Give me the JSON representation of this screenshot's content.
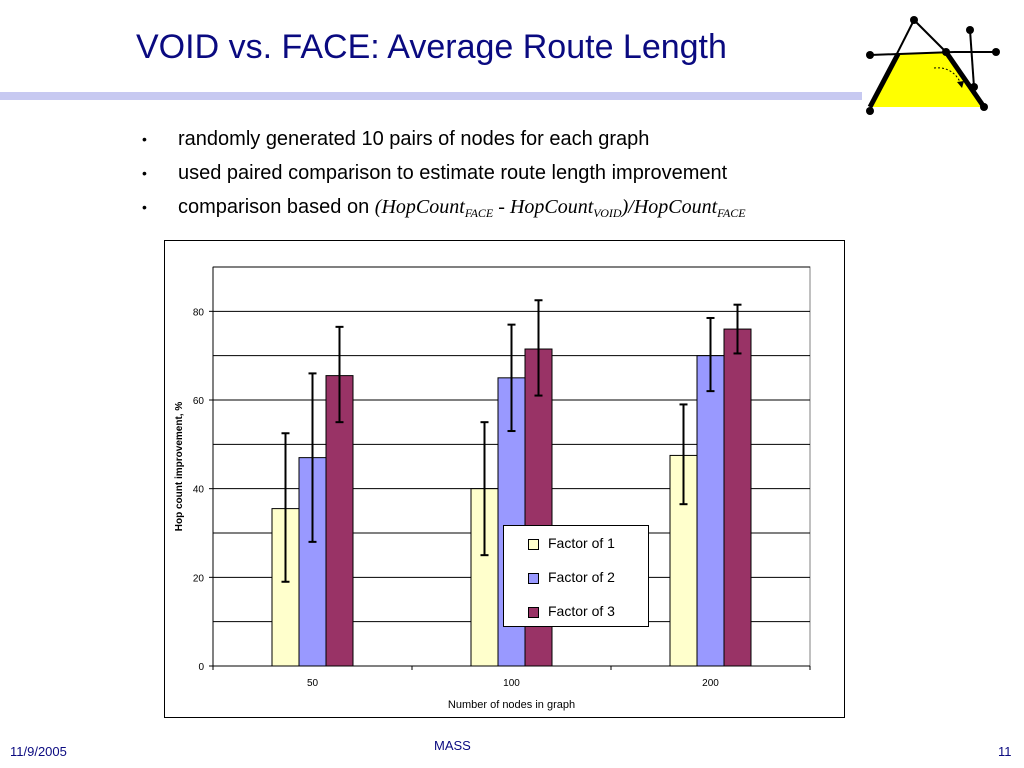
{
  "slide": {
    "title": "VOID vs. FACE: Average Route Length",
    "bullets": [
      "randomly generated 10 pairs of nodes for each graph",
      "used paired comparison to estimate route length improvement"
    ],
    "formula_intro": "comparison based on",
    "formula_parts": {
      "open": "(",
      "hop1": "HopCount",
      "sub1": "FACE",
      "minus": " - ",
      "hop2": "HopCount",
      "sub2": "VOID",
      "close": ")/",
      "hop3": "HopCount",
      "sub3": "FACE"
    },
    "bullet_symbol": "•",
    "footer_date": "11/9/2005",
    "footer_center": "MASS",
    "page_number": "11"
  },
  "colors": {
    "title": "#0a0a80",
    "rule": "#c7c9f1",
    "series": [
      "#ffffcc",
      "#9999ff",
      "#993366"
    ]
  },
  "chart_data": {
    "type": "bar",
    "title": "",
    "xlabel": "Number of nodes in graph",
    "ylabel": "Hop count improvement, %",
    "categories": [
      "50",
      "100",
      "200"
    ],
    "ylim": [
      0,
      90
    ],
    "yticks": [
      0,
      20,
      40,
      60,
      80
    ],
    "grid": true,
    "legend_position": "center-bottom",
    "series": [
      {
        "name": "Factor of 1",
        "values": [
          35.5,
          40,
          47.5
        ],
        "error_low": [
          19,
          25,
          36.5
        ],
        "error_high": [
          52.5,
          55,
          59
        ]
      },
      {
        "name": "Factor of 2",
        "values": [
          47,
          65,
          70
        ],
        "error_low": [
          28,
          53,
          62
        ],
        "error_high": [
          66,
          77,
          78.5
        ]
      },
      {
        "name": "Factor of 3",
        "values": [
          65.5,
          71.5,
          76
        ],
        "error_low": [
          55,
          61,
          70.5
        ],
        "error_high": [
          76.5,
          82.5,
          81.5
        ]
      }
    ]
  }
}
